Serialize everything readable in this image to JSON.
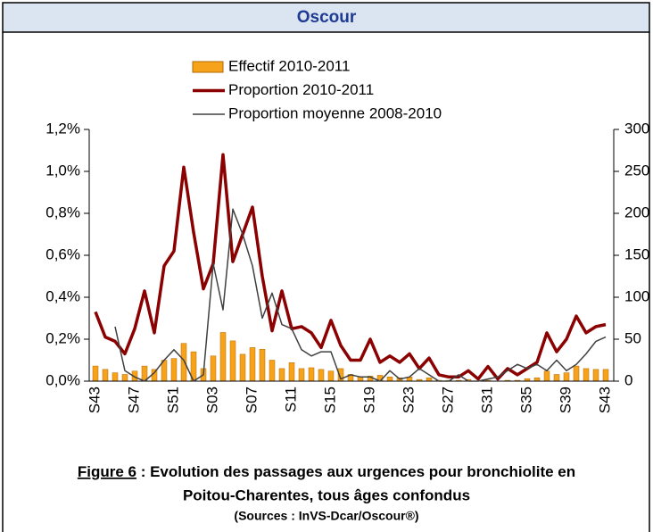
{
  "header": {
    "title": "Oscour"
  },
  "chart_data": {
    "type": "combo",
    "categories": [
      "S43",
      null,
      null,
      null,
      "S47",
      null,
      null,
      null,
      "S51",
      null,
      null,
      null,
      "S03",
      null,
      null,
      null,
      "S07",
      null,
      null,
      null,
      "S11",
      null,
      null,
      null,
      "S15",
      null,
      null,
      null,
      "S19",
      null,
      null,
      null,
      "S23",
      null,
      null,
      null,
      "S27",
      null,
      null,
      null,
      "S31",
      null,
      null,
      null,
      "S35",
      null,
      null,
      null,
      "S39",
      null,
      null,
      null,
      "S43"
    ],
    "series": [
      {
        "name": "Effectif 2010-2011",
        "type": "bar",
        "axis": "y2",
        "color": "#f7a21b",
        "values": [
          18,
          14,
          10,
          8,
          12,
          18,
          14,
          25,
          27,
          45,
          35,
          15,
          30,
          58,
          48,
          32,
          40,
          38,
          25,
          15,
          22,
          15,
          16,
          14,
          12,
          15,
          8,
          5,
          6,
          7,
          5,
          4,
          5,
          2,
          4,
          1,
          1,
          1,
          2,
          0,
          1,
          0,
          1,
          1,
          3,
          4,
          12,
          8,
          10,
          18,
          15,
          14,
          14
        ]
      },
      {
        "name": "Proportion 2010-2011",
        "type": "line",
        "color": "#8b0000",
        "values": [
          0.33,
          0.21,
          0.19,
          0.13,
          0.25,
          0.43,
          0.23,
          0.55,
          0.62,
          1.02,
          0.71,
          0.44,
          0.56,
          1.08,
          0.57,
          0.7,
          0.83,
          0.5,
          0.24,
          0.43,
          0.25,
          0.26,
          0.23,
          0.16,
          0.29,
          0.17,
          0.1,
          0.1,
          0.2,
          0.09,
          0.12,
          0.09,
          0.13,
          0.06,
          0.11,
          0.03,
          0.02,
          0.02,
          0.05,
          0.01,
          0.07,
          0.01,
          0.06,
          0.03,
          0.06,
          0.09,
          0.23,
          0.14,
          0.2,
          0.31,
          0.23,
          0.26,
          0.27
        ]
      },
      {
        "name": "Proportion moyenne 2008-2010",
        "type": "line",
        "color": "#404040",
        "values": [
          null,
          null,
          0.26,
          0.05,
          0.02,
          0.0,
          0.04,
          0.1,
          0.15,
          0.1,
          0.0,
          0.03,
          0.56,
          0.34,
          0.82,
          0.7,
          0.55,
          0.3,
          0.42,
          0.27,
          0.25,
          0.15,
          0.12,
          0.14,
          0.14,
          0.01,
          0.03,
          0.02,
          0.02,
          0.0,
          0.05,
          0.01,
          0.02,
          0.06,
          0.03,
          0.0,
          0.0,
          0.03,
          0.0,
          0.0,
          0.01,
          0.02,
          0.05,
          0.08,
          0.06,
          0.08,
          0.05,
          0.1,
          0.05,
          0.08,
          0.13,
          0.19,
          0.21
        ]
      }
    ],
    "ylim": [
      0,
      1.2
    ],
    "yticks": [
      {
        "value": 0,
        "label": "0,0%"
      },
      {
        "value": 0.2,
        "label": "0,2%"
      },
      {
        "value": 0.4,
        "label": "0,4%"
      },
      {
        "value": 0.6,
        "label": "0,6%"
      },
      {
        "value": 0.8,
        "label": "0,8%"
      },
      {
        "value": 1.0,
        "label": "1,0%"
      },
      {
        "value": 1.2,
        "label": "1,2%"
      }
    ],
    "y2lim": [
      0,
      300
    ],
    "y2ticks": [
      0,
      50,
      100,
      150,
      200,
      250,
      300
    ]
  },
  "caption": {
    "figure": "Figure 6",
    "line1": " : Evolution des passages aux urgences pour bronchiolite en",
    "line2": "Poitou-Charentes, tous âges confondus",
    "sources": "(Sources : InVS-Dcar/Oscour®)"
  }
}
